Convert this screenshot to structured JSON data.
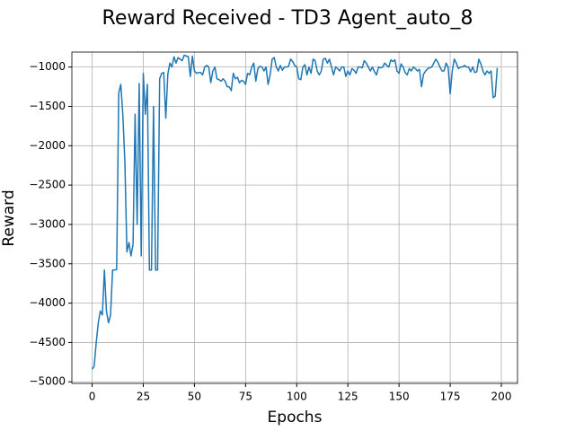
{
  "chart_data": {
    "type": "line",
    "title": "Reward Received - TD3 Agent_auto_8",
    "x_label": "Epochs",
    "y_label": "Reward",
    "grid": true,
    "xlim": [
      -9.9,
      207.9
    ],
    "xticks": [
      0,
      25,
      50,
      75,
      100,
      125,
      150,
      175,
      200
    ],
    "ylim": [
      -5020,
      -810
    ],
    "yticks": [
      {
        "value": -5000,
        "label": "−5000"
      },
      {
        "value": -4500,
        "label": "−4500"
      },
      {
        "value": -4000,
        "label": "−4000"
      },
      {
        "value": -3500,
        "label": "−3500"
      },
      {
        "value": -3000,
        "label": "−3000"
      },
      {
        "value": -2500,
        "label": "−2500"
      },
      {
        "value": -2000,
        "label": "−2000"
      },
      {
        "value": -1500,
        "label": "−1500"
      },
      {
        "value": -1000,
        "label": "−1000"
      }
    ],
    "x": [
      0,
      1,
      2,
      3,
      4,
      5,
      6,
      7,
      8,
      9,
      10,
      11,
      12,
      13,
      14,
      15,
      16,
      17,
      18,
      19,
      20,
      21,
      22,
      23,
      24,
      25,
      26,
      27,
      28,
      29,
      30,
      31,
      32,
      33,
      34,
      35,
      36,
      37,
      38,
      39,
      40,
      41,
      42,
      43,
      44,
      45,
      46,
      47,
      48,
      49,
      50,
      51,
      52,
      53,
      54,
      55,
      56,
      57,
      58,
      59,
      60,
      61,
      62,
      63,
      64,
      65,
      66,
      67,
      68,
      69,
      70,
      71,
      72,
      73,
      74,
      75,
      76,
      77,
      78,
      79,
      80,
      81,
      82,
      83,
      84,
      85,
      86,
      87,
      88,
      89,
      90,
      91,
      92,
      93,
      94,
      95,
      96,
      97,
      98,
      99,
      100,
      101,
      102,
      103,
      104,
      105,
      106,
      107,
      108,
      109,
      110,
      111,
      112,
      113,
      114,
      115,
      116,
      117,
      118,
      119,
      120,
      121,
      122,
      123,
      124,
      125,
      126,
      127,
      128,
      129,
      130,
      131,
      132,
      133,
      134,
      135,
      136,
      137,
      138,
      139,
      140,
      141,
      142,
      143,
      144,
      145,
      146,
      147,
      148,
      149,
      150,
      151,
      152,
      153,
      154,
      155,
      156,
      157,
      158,
      159,
      160,
      161,
      162,
      163,
      164,
      165,
      166,
      167,
      168,
      169,
      170,
      171,
      172,
      173,
      174,
      175,
      176,
      177,
      178,
      179,
      180,
      181,
      182,
      183,
      184,
      185,
      186,
      187,
      188,
      189,
      190,
      191,
      192,
      193,
      194,
      195,
      196,
      197,
      198
    ],
    "series": [
      {
        "color": "#1f77b4",
        "values": [
          -4840,
          -4800,
          -4500,
          -4250,
          -4100,
          -4150,
          -3580,
          -4100,
          -4250,
          -4150,
          -3580,
          -3580,
          -3570,
          -1330,
          -1220,
          -1600,
          -2200,
          -3350,
          -3230,
          -3400,
          -3250,
          -1600,
          -3000,
          -1210,
          -3400,
          -1080,
          -1600,
          -1220,
          -3580,
          -3580,
          -1500,
          -3580,
          -3580,
          -1150,
          -1080,
          -1070,
          -1650,
          -1090,
          -950,
          -1000,
          -870,
          -950,
          -880,
          -900,
          -920,
          -850,
          -860,
          -870,
          -1120,
          -860,
          -1050,
          -1080,
          -1070,
          -1070,
          -1100,
          -1000,
          -980,
          -1000,
          -1200,
          -1050,
          -1000,
          -1150,
          -1160,
          -1180,
          -1150,
          -1180,
          -1250,
          -1250,
          -1300,
          -1080,
          -1150,
          -1130,
          -1200,
          -1170,
          -1180,
          -1220,
          -1080,
          -1100,
          -1000,
          -950,
          -1180,
          -1020,
          -990,
          -1000,
          -1050,
          -1000,
          -1220,
          -1100,
          -900,
          -880,
          -1000,
          -1050,
          -980,
          -1040,
          -1000,
          -1000,
          -990,
          -900,
          -930,
          -980,
          -1000,
          -1150,
          -1160,
          -1000,
          -970,
          -1100,
          -1000,
          -1080,
          -900,
          -920,
          -1050,
          -1100,
          -1050,
          -900,
          -890,
          -950,
          -900,
          -1000,
          -1100,
          -1000,
          -1020,
          -1050,
          -1000,
          -1000,
          -1120,
          -1050,
          -1100,
          -1020,
          -1040,
          -1080,
          -1000,
          -1000,
          -1010,
          -920,
          -950,
          -1000,
          -1050,
          -1000,
          -1060,
          -1100,
          -1000,
          -1010,
          -1000,
          -950,
          -980,
          -1000,
          -910,
          -930,
          -910,
          -1050,
          -1080,
          -960,
          -1000,
          -1070,
          -1100,
          -1020,
          -1050,
          -1000,
          -1020,
          -1050,
          -1030,
          -1250,
          -1090,
          -1050,
          -1020,
          -1010,
          -1000,
          -950,
          -900,
          -940,
          -1000,
          -1050,
          -1050,
          -950,
          -1000,
          -1340,
          -1050,
          -900,
          -950,
          -1020,
          -1000,
          -1000,
          -980,
          -1000,
          -1000,
          -1060,
          -1000,
          -1070,
          -1060,
          -900,
          -960,
          -1050,
          -1100,
          -1050,
          -1080,
          -1050,
          -1390,
          -1370,
          -1010
        ]
      }
    ]
  }
}
